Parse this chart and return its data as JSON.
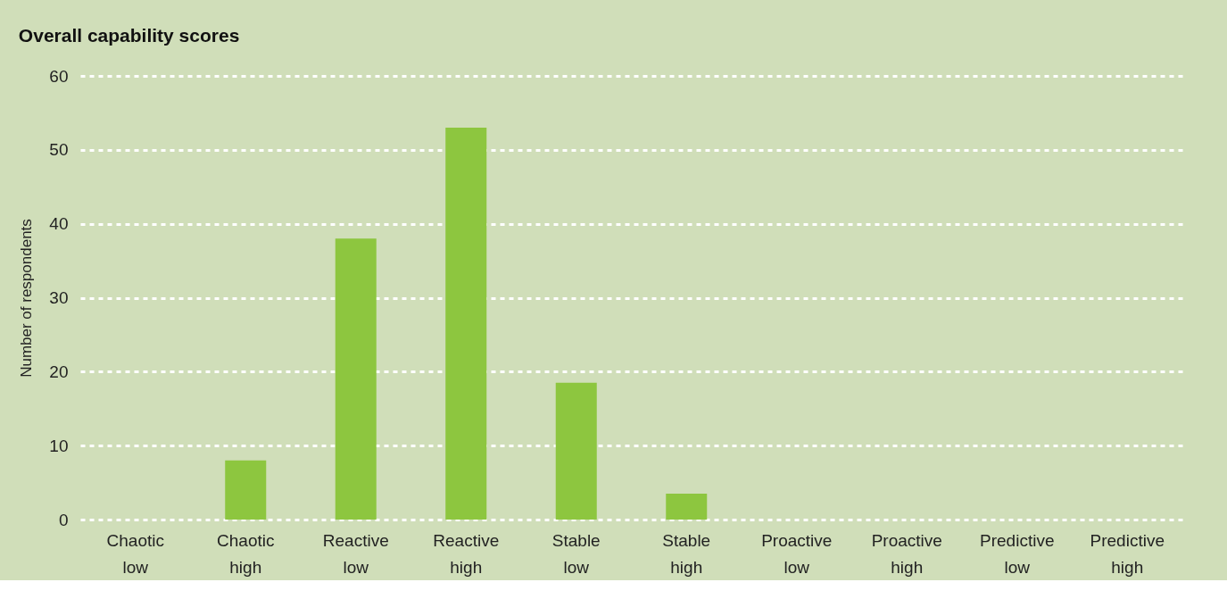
{
  "chart_data": {
    "type": "bar",
    "title": "Overall capability scores",
    "ylabel": "Number of respondents",
    "categories": [
      "Chaotic low",
      "Chaotic high",
      "Reactive low",
      "Reactive high",
      "Stable low",
      "Stable high",
      "Proactive low",
      "Proactive high",
      "Predictive low",
      "Predictive high"
    ],
    "values": [
      0,
      8,
      38,
      53,
      18.5,
      3.5,
      0,
      0,
      0,
      0
    ],
    "color": "#8dc63f",
    "ylim": [
      0,
      60
    ],
    "yticks": [
      0,
      10,
      20,
      30,
      40,
      50,
      60
    ],
    "grid": "y"
  }
}
